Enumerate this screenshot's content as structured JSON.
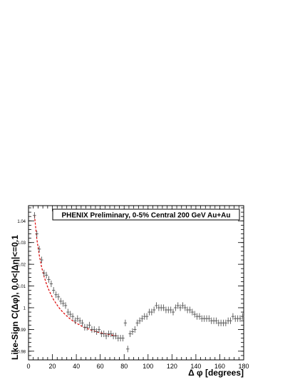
{
  "chart_data": {
    "type": "scatter",
    "title": "",
    "legend_text": "PHENIX Preliminary, 0-5% Central 200 GeV Au+Au",
    "legend_position": "top-right",
    "xlabel": "Δ φ [degrees]",
    "ylabel": "Like-Sign C(Δφ), 0.0<|Δη|<=0.1",
    "xlim": [
      0,
      180
    ],
    "ylim": [
      0.976,
      1.047
    ],
    "x_ticks": [
      0,
      20,
      40,
      60,
      80,
      100,
      120,
      140,
      160,
      180
    ],
    "x_tick_labels": [
      "0",
      "20",
      "40",
      "60",
      "80",
      "100",
      "120",
      "140",
      "160",
      "180"
    ],
    "y_ticks": [
      0.98,
      0.99,
      1.0,
      1.01,
      1.02,
      1.03,
      1.04
    ],
    "y_tick_labels": [
      "0.98",
      "0.99",
      "1",
      "1.01",
      "1.02",
      "1.03",
      "1.04"
    ],
    "grid": false,
    "series": [
      {
        "marker": "cross",
        "color": "#555555",
        "x": [
          5,
          7,
          9,
          11,
          13,
          15,
          17,
          19,
          21,
          23,
          25,
          27,
          29,
          31,
          33,
          35,
          37,
          39,
          41,
          43,
          45,
          47,
          49,
          51,
          53,
          55,
          57,
          59,
          61,
          63,
          65,
          67,
          69,
          71,
          73,
          75,
          77,
          79,
          81,
          83,
          85,
          87,
          89,
          91,
          93,
          95,
          97,
          99,
          101,
          103,
          105,
          107,
          109,
          111,
          113,
          115,
          117,
          119,
          121,
          123,
          125,
          127,
          129,
          131,
          133,
          135,
          137,
          139,
          141,
          143,
          145,
          147,
          149,
          151,
          153,
          155,
          157,
          159,
          161,
          163,
          165,
          167,
          169,
          171,
          173,
          175,
          177,
          179
        ],
        "y": [
          1.0425,
          1.034,
          1.027,
          1.022,
          1.016,
          1.015,
          1.013,
          1.011,
          1.008,
          1.006,
          1.005,
          1.003,
          1.002,
          1.001,
          0.998,
          0.997,
          0.996,
          0.994,
          0.995,
          0.994,
          0.993,
          0.991,
          0.991,
          0.992,
          0.99,
          0.99,
          0.989,
          0.99,
          0.988,
          0.988,
          0.987,
          0.988,
          0.988,
          0.987,
          0.987,
          0.986,
          0.986,
          0.986,
          0.993,
          0.981,
          0.988,
          0.989,
          0.99,
          0.993,
          0.994,
          0.995,
          0.996,
          0.996,
          0.998,
          0.998,
          0.999,
          1.001,
          1.0,
          1.0,
          1.0,
          0.999,
          0.999,
          0.999,
          0.998,
          1.0,
          1.001,
          1.0,
          1.001,
          1.0,
          0.999,
          0.999,
          0.998,
          0.997,
          0.996,
          0.996,
          0.995,
          0.995,
          0.995,
          0.995,
          0.994,
          0.994,
          0.994,
          0.993,
          0.993,
          0.993,
          0.993,
          0.994,
          0.994,
          0.996,
          0.995,
          0.995,
          0.995,
          0.996
        ],
        "yerr": [
          0.0015,
          0.0015,
          0.0015,
          0.0015,
          0.0015,
          0.0015,
          0.0015,
          0.0015,
          0.0015,
          0.0015,
          0.0015,
          0.0015,
          0.0015,
          0.0015,
          0.0015,
          0.0015,
          0.0015,
          0.0015,
          0.0015,
          0.0015,
          0.0015,
          0.0015,
          0.0015,
          0.0015,
          0.0015,
          0.0015,
          0.0015,
          0.0015,
          0.0015,
          0.0015,
          0.0015,
          0.0015,
          0.0015,
          0.0015,
          0.0015,
          0.0015,
          0.0015,
          0.0015,
          0.0015,
          0.0015,
          0.0015,
          0.0015,
          0.0015,
          0.0015,
          0.0015,
          0.0015,
          0.0015,
          0.0015,
          0.0015,
          0.0015,
          0.0015,
          0.0015,
          0.0015,
          0.0015,
          0.0015,
          0.0015,
          0.0015,
          0.0015,
          0.0015,
          0.0015,
          0.0015,
          0.0015,
          0.0015,
          0.0015,
          0.0015,
          0.0015,
          0.0015,
          0.0015,
          0.0015,
          0.0015,
          0.0015,
          0.0015,
          0.0015,
          0.0015,
          0.0015,
          0.0015,
          0.0015,
          0.0015,
          0.0015,
          0.0015,
          0.0015,
          0.0015,
          0.0015,
          0.0015,
          0.0015,
          0.0015,
          0.0015,
          0.0015
        ]
      },
      {
        "type": "line",
        "style": "dashed",
        "color": "#dd0000",
        "x": [
          5,
          7,
          9,
          11,
          13,
          15,
          17,
          19,
          21,
          23,
          25,
          27,
          29,
          31,
          33,
          35,
          37,
          39,
          41,
          43,
          45,
          47,
          49,
          51,
          53,
          55,
          57,
          59,
          61,
          63,
          65,
          67,
          69,
          71,
          73,
          75
        ],
        "y": [
          1.0425,
          1.0315,
          1.0242,
          1.0186,
          1.0144,
          1.011,
          1.0082,
          1.0058,
          1.0037,
          1.002,
          1.0004,
          0.999,
          0.9978,
          0.9967,
          0.9957,
          0.9948,
          0.994,
          0.9933,
          0.9926,
          0.992,
          0.9914,
          0.9909,
          0.9905,
          0.99,
          0.9896,
          0.9893,
          0.9889,
          0.9886,
          0.9884,
          0.9881,
          0.9879,
          0.9877,
          0.9875,
          0.9873,
          0.9871,
          0.987
        ]
      }
    ]
  }
}
